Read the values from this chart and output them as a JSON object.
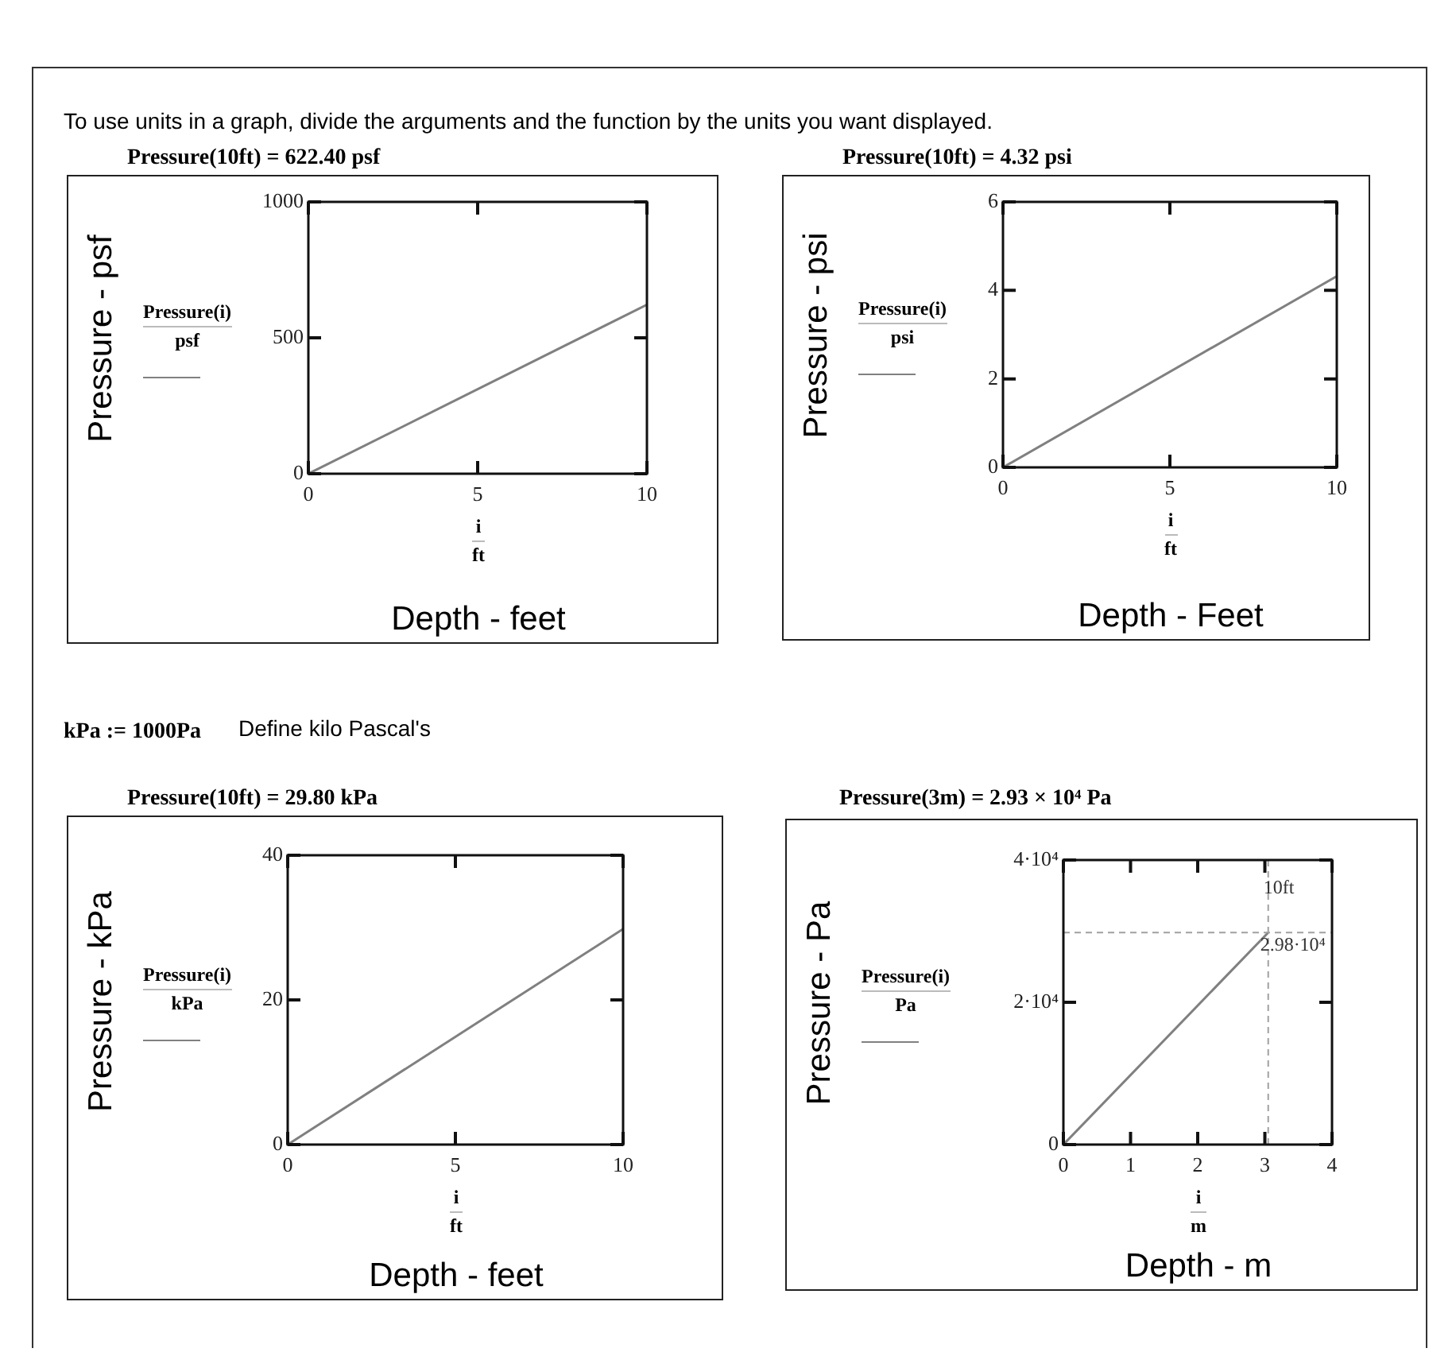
{
  "chart_data": [
    {
      "type": "line",
      "title": "Pressure(10ft) = 622.40 psf",
      "xlabel": "Depth - feet",
      "ylabel": "Pressure - psf",
      "x": [
        0,
        10
      ],
      "series": [
        {
          "color": "#808080",
          "values": [
            0,
            622
          ]
        }
      ],
      "xlim": [
        0,
        10
      ],
      "xticks": [
        0,
        5,
        10
      ],
      "ylim": [
        0,
        1000
      ],
      "yticks": [
        0,
        500,
        1000
      ],
      "annotations": [
        "Pressure(i)",
        "psf",
        "i",
        "ft",
        "To use units in a graph, divide the arguments and the function by the units you want displayed."
      ]
    },
    {
      "type": "line",
      "title": "Pressure(10ft) = 4.32 psi",
      "xlabel": "Depth - Feet",
      "ylabel": "Pressure - psi",
      "x": [
        0,
        10
      ],
      "series": [
        {
          "color": "#808080",
          "values": [
            0,
            4.32
          ]
        }
      ],
      "xlim": [
        0,
        10
      ],
      "xticks": [
        0,
        5,
        10
      ],
      "ylim": [
        0,
        6
      ],
      "yticks": [
        0,
        2,
        4,
        6
      ],
      "annotations": [
        "Pressure(i)",
        "psi",
        "i",
        "ft"
      ]
    },
    {
      "type": "line",
      "title": "Pressure(10ft) = 29.80 kPa",
      "xlabel": "Depth - feet",
      "ylabel": "Pressure - kPa",
      "x": [
        0,
        10
      ],
      "series": [
        {
          "color": "#808080",
          "values": [
            0,
            29.8
          ]
        }
      ],
      "xlim": [
        0,
        10
      ],
      "xticks": [
        0,
        5,
        10
      ],
      "ylim": [
        0,
        40
      ],
      "yticks": [
        0,
        20,
        40
      ],
      "annotations": [
        "Pressure(i)",
        "kPa",
        "i",
        "ft",
        "kPa := 1000Pa",
        "Define kilo Pascal's"
      ]
    },
    {
      "type": "line",
      "title": "Pressure(3m) = 2.93 × 10⁴ Pa",
      "xlabel": "Depth - m",
      "ylabel": "Pressure - Pa",
      "x": [
        0,
        3.05
      ],
      "series": [
        {
          "color": "#808080",
          "values": [
            0,
            29800
          ]
        }
      ],
      "xlim": [
        0,
        4
      ],
      "xticks": [
        0,
        1,
        2,
        3,
        4
      ],
      "ylim": [
        0,
        40000
      ],
      "yticks": [
        0,
        {
          "value": 20000,
          "label": "2·10⁴"
        },
        {
          "value": 40000,
          "label": "4·10⁴"
        }
      ],
      "ref_lines": [
        {
          "axis": "x",
          "value": 3.05,
          "label": "10ft",
          "color": "#a0a0a0",
          "line_style": "dashed"
        },
        {
          "axis": "y",
          "value": 29800,
          "label": "2.98·10⁴",
          "color": "#a0a0a0",
          "line_style": "dashed"
        }
      ],
      "annotations": [
        "Pressure(i)",
        "Pa",
        "i",
        "m"
      ]
    }
  ]
}
